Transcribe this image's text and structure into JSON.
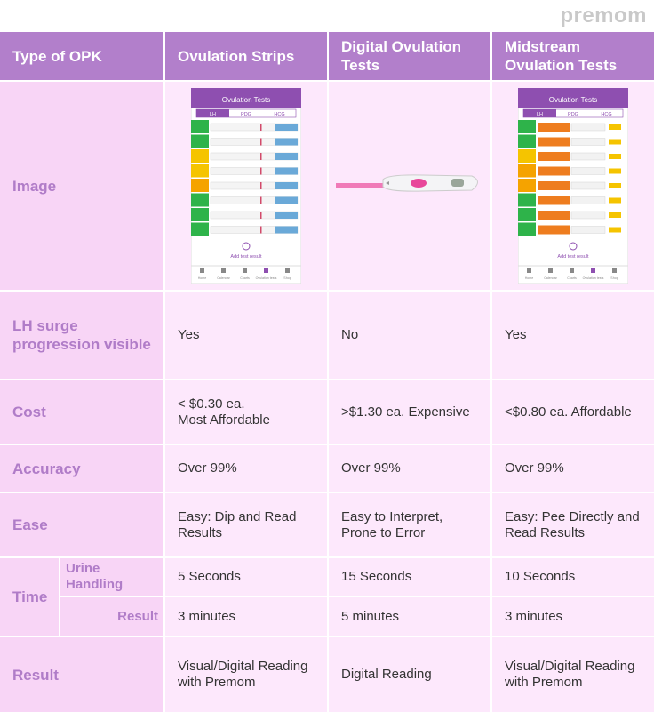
{
  "logo": "premom",
  "phone": {
    "title": "Ovulation Tests",
    "tabs": [
      "LH",
      "PDG",
      "HCG"
    ],
    "add": "Add test result",
    "nav": [
      "Home",
      "Calendar",
      "Charts",
      "Ovulation tests",
      "Shop"
    ]
  },
  "table": {
    "header": [
      "Type of OPK",
      "Ovulation Strips",
      "Digital Ovulation Tests",
      "Midstream Ovulation Tests"
    ],
    "image_label": "Image",
    "rows": [
      [
        "LH surge progression visible",
        "Yes",
        "No",
        "Yes"
      ],
      [
        "Cost",
        "< $0.30 ea.\nMost Affordable",
        ">$1.30 ea. Expensive",
        "<$0.80 ea. Affordable"
      ],
      [
        "Accuracy",
        "Over 99%",
        "Over 99%",
        "Over 99%"
      ],
      [
        "Ease",
        "Easy: Dip and Read Results",
        "Easy to Interpret, Prone to Error",
        "Easy: Pee Directly and Read Results"
      ]
    ],
    "time": {
      "label": "Time",
      "rows": [
        [
          "Urine Handling",
          "5 Seconds",
          "15 Seconds",
          "10 Seconds"
        ],
        [
          "Result",
          "3 minutes",
          "5 minutes",
          "3 minutes"
        ]
      ]
    },
    "result": [
      "Result",
      "Visual/Digital Reading with Premom",
      "Digital Reading",
      "Visual/Digital Reading with Premom"
    ]
  }
}
